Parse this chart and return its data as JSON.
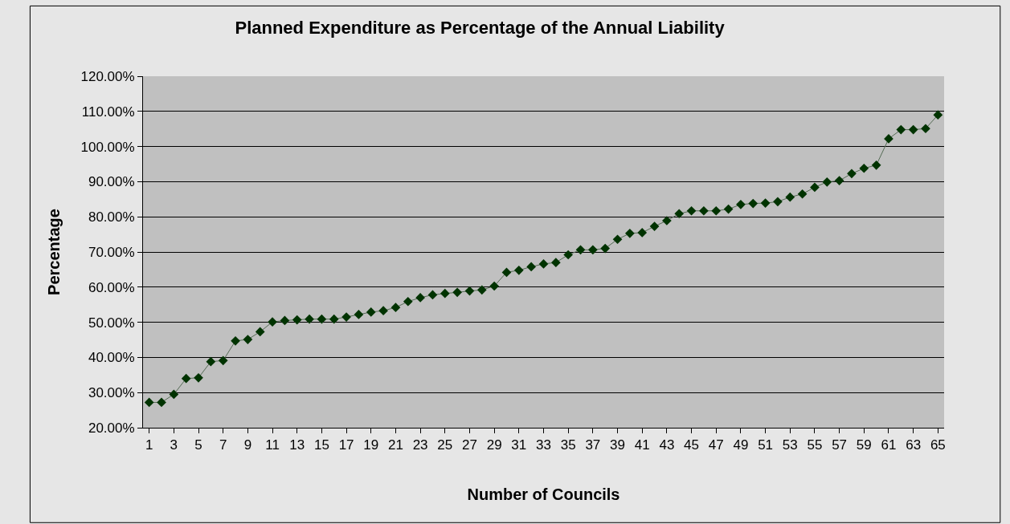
{
  "chart_data": {
    "type": "line",
    "title": "Planned Expenditure as Percentage of the Annual Liability",
    "xlabel": "Number of Councils",
    "ylabel": "Percentage",
    "x": [
      1,
      2,
      3,
      4,
      5,
      6,
      7,
      8,
      9,
      10,
      11,
      12,
      13,
      14,
      15,
      16,
      17,
      18,
      19,
      20,
      21,
      22,
      23,
      24,
      25,
      26,
      27,
      28,
      29,
      30,
      31,
      32,
      33,
      34,
      35,
      36,
      37,
      38,
      39,
      40,
      41,
      42,
      43,
      44,
      45,
      46,
      47,
      48,
      49,
      50,
      51,
      52,
      53,
      54,
      55,
      56,
      57,
      58,
      59,
      60,
      61,
      62,
      63,
      64,
      65
    ],
    "series": [
      {
        "color": "#003300",
        "values": [
          27.2,
          27.2,
          29.5,
          34.0,
          34.2,
          38.8,
          39.1,
          44.7,
          45.1,
          47.3,
          50.1,
          50.5,
          50.7,
          50.9,
          50.9,
          50.9,
          51.5,
          52.2,
          52.9,
          53.3,
          54.2,
          55.9,
          57.0,
          57.8,
          58.2,
          58.5,
          58.9,
          59.2,
          60.3,
          64.2,
          64.8,
          65.8,
          66.6,
          67.0,
          69.2,
          70.6,
          70.6,
          71.0,
          73.6,
          75.3,
          75.5,
          77.3,
          78.9,
          80.9,
          81.7,
          81.7,
          81.7,
          82.2,
          83.5,
          83.8,
          83.9,
          84.3,
          85.6,
          86.5,
          88.4,
          89.9,
          90.3,
          92.3,
          93.8,
          94.7,
          102.2,
          104.8,
          104.8,
          105.1,
          109.0
        ]
      }
    ],
    "xlim": [
      0.5,
      65.5
    ],
    "xticks": [
      1,
      3,
      5,
      7,
      9,
      11,
      13,
      15,
      17,
      19,
      21,
      23,
      25,
      27,
      29,
      31,
      33,
      35,
      37,
      39,
      41,
      43,
      45,
      47,
      49,
      51,
      53,
      55,
      57,
      59,
      61,
      63,
      65
    ],
    "ylim": [
      20,
      120
    ],
    "yticks": [
      {
        "value": 20,
        "label": "20.00%"
      },
      {
        "value": 30,
        "label": "30.00%"
      },
      {
        "value": 40,
        "label": "40.00%"
      },
      {
        "value": 50,
        "label": "50.00%"
      },
      {
        "value": 60,
        "label": "60.00%"
      },
      {
        "value": 70,
        "label": "70.00%"
      },
      {
        "value": 80,
        "label": "80.00%"
      },
      {
        "value": 90,
        "label": "90.00%"
      },
      {
        "value": 100,
        "label": "100.00%"
      },
      {
        "value": 110,
        "label": "110.00%"
      },
      {
        "value": 120,
        "label": "120.00%"
      }
    ],
    "grid": "y",
    "marker": "diamond",
    "line_style": "solid"
  }
}
